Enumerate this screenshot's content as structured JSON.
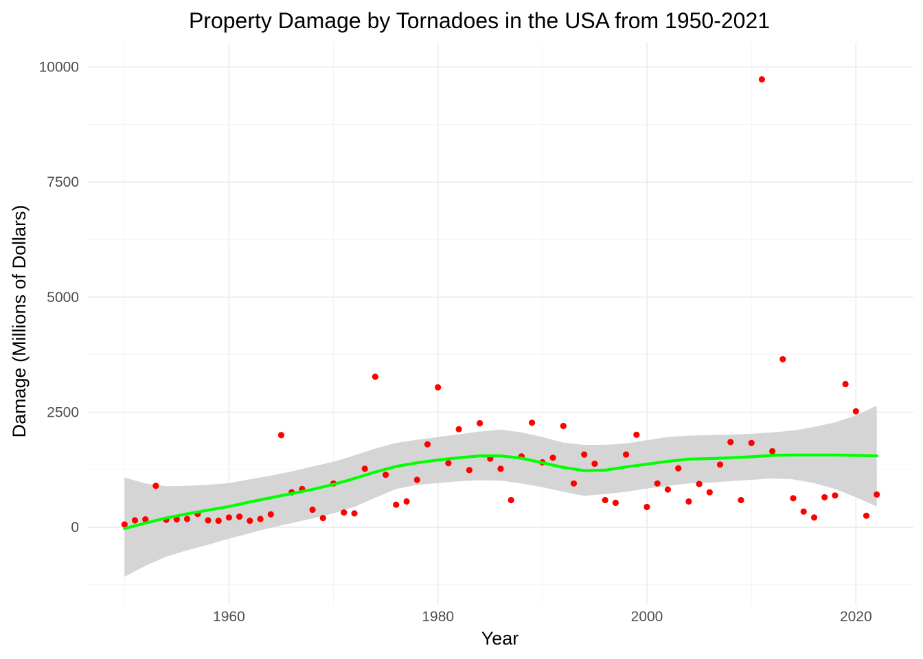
{
  "chart_data": {
    "type": "scatter",
    "title": "Property Damage by Tornadoes in the USA from 1950-2021",
    "xlabel": "Year",
    "ylabel": "Damage (Millions of Dollars)",
    "xlim": [
      1946.5,
      2025.5
    ],
    "ylim": [
      -1670,
      10530
    ],
    "x_ticks": [
      1960,
      1980,
      2000,
      2020
    ],
    "y_ticks": [
      0,
      2500,
      5000,
      7500,
      10000
    ],
    "grid": true,
    "colors": {
      "points": "#ff0000",
      "smooth_line": "#00ff00",
      "confidence_band": "#d3d3d3"
    },
    "series": [
      {
        "name": "Damage",
        "x": [
          1950,
          1951,
          1952,
          1953,
          1954,
          1955,
          1956,
          1957,
          1958,
          1959,
          1960,
          1961,
          1962,
          1963,
          1964,
          1965,
          1966,
          1967,
          1968,
          1969,
          1970,
          1971,
          1972,
          1973,
          1974,
          1975,
          1976,
          1977,
          1978,
          1979,
          1980,
          1981,
          1982,
          1983,
          1984,
          1985,
          1986,
          1987,
          1988,
          1989,
          1990,
          1991,
          1992,
          1993,
          1994,
          1995,
          1996,
          1997,
          1998,
          1999,
          2000,
          2001,
          2002,
          2003,
          2004,
          2005,
          2006,
          2007,
          2008,
          2009,
          2010,
          2011,
          2012,
          2013,
          2014,
          2015,
          2016,
          2017,
          2018,
          2019,
          2020,
          2021,
          2022
        ],
        "y": [
          60,
          150,
          170,
          900,
          160,
          170,
          180,
          290,
          150,
          140,
          210,
          230,
          140,
          180,
          280,
          2000,
          760,
          830,
          380,
          200,
          950,
          320,
          300,
          1270,
          3270,
          1140,
          490,
          560,
          1030,
          1800,
          3040,
          1390,
          2130,
          1240,
          2260,
          1490,
          1270,
          590,
          1540,
          2270,
          1410,
          1510,
          2200,
          950,
          1580,
          1380,
          590,
          530,
          1580,
          2010,
          440,
          950,
          820,
          1280,
          560,
          940,
          760,
          1360,
          1850,
          590,
          1830,
          9730,
          1650,
          3650,
          630,
          340,
          210,
          650,
          690,
          3110,
          2520,
          250,
          710
        ]
      },
      {
        "name": "Smoothed trend",
        "x": [
          1950,
          1952,
          1954,
          1956,
          1958,
          1960,
          1962,
          1964,
          1966,
          1968,
          1970,
          1972,
          1974,
          1976,
          1978,
          1980,
          1982,
          1984,
          1986,
          1988,
          1990,
          1992,
          1994,
          1996,
          1998,
          2000,
          2002,
          2004,
          2006,
          2008,
          2010,
          2012,
          2014,
          2016,
          2018,
          2020,
          2022
        ],
        "y": [
          -30,
          90,
          200,
          290,
          370,
          450,
          550,
          640,
          730,
          820,
          930,
          1060,
          1200,
          1320,
          1400,
          1460,
          1510,
          1550,
          1550,
          1500,
          1400,
          1300,
          1230,
          1240,
          1310,
          1370,
          1430,
          1480,
          1490,
          1510,
          1530,
          1560,
          1570,
          1570,
          1570,
          1560,
          1550
        ],
        "lower": [
          -1080,
          -840,
          -640,
          -500,
          -380,
          -250,
          -130,
          -10,
          90,
          190,
          300,
          440,
          640,
          830,
          920,
          960,
          1000,
          1020,
          1010,
          950,
          870,
          770,
          680,
          720,
          770,
          840,
          900,
          950,
          970,
          1000,
          1030,
          1060,
          1040,
          960,
          830,
          650,
          450
        ],
        "upper": [
          1080,
          950,
          890,
          900,
          920,
          960,
          1040,
          1120,
          1210,
          1320,
          1420,
          1560,
          1710,
          1830,
          1900,
          1960,
          2020,
          2080,
          2120,
          2060,
          1960,
          1840,
          1790,
          1790,
          1820,
          1890,
          1960,
          1990,
          2000,
          2010,
          2030,
          2060,
          2100,
          2180,
          2280,
          2430,
          2640
        ]
      }
    ]
  }
}
